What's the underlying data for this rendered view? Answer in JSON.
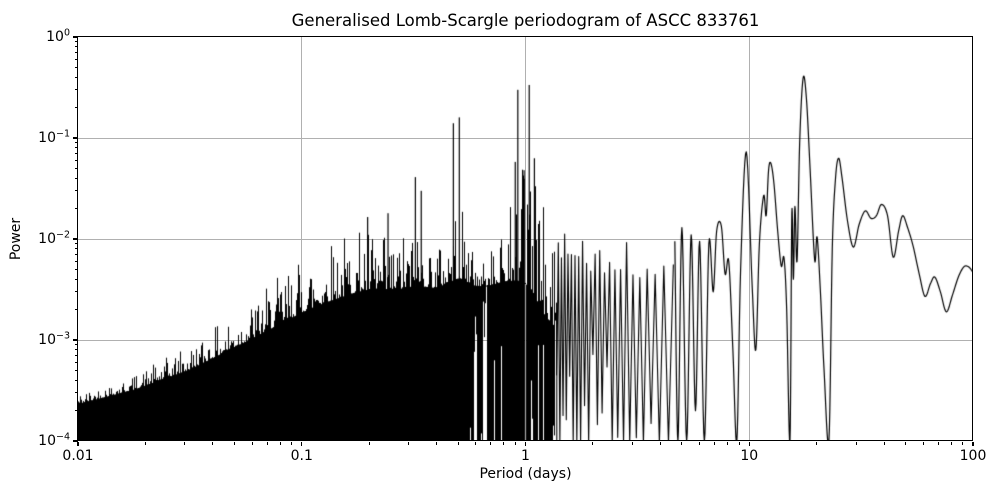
{
  "title": "Generalised Lomb-Scargle periodogram of ASCC 833761",
  "axes": {
    "xlabel": "Period (days)",
    "ylabel": "Power",
    "x_ticks": [
      {
        "value": 0.01,
        "label": "0.01"
      },
      {
        "value": 0.1,
        "label": "0.1"
      },
      {
        "value": 1,
        "label": "1"
      },
      {
        "value": 10,
        "label": "10"
      },
      {
        "value": 100,
        "label": "100"
      }
    ],
    "y_ticks": [
      {
        "value": 1,
        "base": "10",
        "exp": "0"
      },
      {
        "value": 0.1,
        "base": "10",
        "exp": "−1"
      },
      {
        "value": 0.01,
        "base": "10",
        "exp": "−2"
      },
      {
        "value": 0.001,
        "base": "10",
        "exp": "−3"
      },
      {
        "value": 0.0001,
        "base": "10",
        "exp": "−4"
      }
    ]
  },
  "chart_data": {
    "type": "line",
    "title": "Generalised Lomb-Scargle periodogram of ASCC 833761",
    "xlabel": "Period (days)",
    "ylabel": "Power",
    "x_scale": "log",
    "y_scale": "log",
    "x_range": [
      0.01,
      100
    ],
    "y_range": [
      0.0001,
      1
    ],
    "grid": true,
    "line_color": "#000000",
    "grid_color": "#b0b0b0",
    "x_gridlines": [
      0.1,
      1,
      10
    ],
    "y_gridlines": [
      0.1,
      0.01,
      0.001
    ],
    "peaks": [
      {
        "period": 0.197,
        "power": 0.0165
      },
      {
        "period": 0.243,
        "power": 0.018
      },
      {
        "period": 0.322,
        "power": 0.041
      },
      {
        "period": 0.342,
        "power": 0.03
      },
      {
        "period": 0.476,
        "power": 0.14
      },
      {
        "period": 0.506,
        "power": 0.16
      },
      {
        "period": 0.9,
        "power": 0.058
      },
      {
        "period": 0.924,
        "power": 0.3
      },
      {
        "period": 0.986,
        "power": 0.048
      },
      {
        "period": 1.039,
        "power": 0.335
      },
      {
        "period": 1.096,
        "power": 0.063
      }
    ],
    "series_tail": [
      [
        4.65,
        0.0095
      ],
      [
        4.8,
        0.0001
      ],
      [
        5.0,
        0.013
      ],
      [
        5.25,
        0.0001
      ],
      [
        5.5,
        0.011
      ],
      [
        5.75,
        0.0002
      ],
      [
        6.0,
        0.0095
      ],
      [
        6.3,
        0.0001
      ],
      [
        6.6,
        0.009
      ],
      [
        6.9,
        0.003
      ],
      [
        7.15,
        0.012
      ],
      [
        7.5,
        0.0135
      ],
      [
        7.8,
        0.0045
      ],
      [
        8.1,
        0.006
      ],
      [
        8.45,
        0.0008
      ],
      [
        8.8,
        0.0001
      ],
      [
        9.15,
        0.005
      ],
      [
        9.7,
        0.073
      ],
      [
        10.3,
        0.0035
      ],
      [
        10.7,
        0.0008
      ],
      [
        11.1,
        0.009
      ],
      [
        11.6,
        0.027
      ],
      [
        11.9,
        0.017
      ],
      [
        12.2,
        0.048
      ],
      [
        12.5,
        0.056
      ],
      [
        12.9,
        0.035
      ],
      [
        13.4,
        0.012
      ],
      [
        13.9,
        0.0054
      ],
      [
        14.3,
        0.0065
      ],
      [
        14.7,
        0.002
      ],
      [
        15.2,
        0.0001
      ],
      [
        15.5,
        0.018
      ],
      [
        15.75,
        0.004
      ],
      [
        16.0,
        0.021
      ],
      [
        16.35,
        0.006
      ],
      [
        16.8,
        0.09
      ],
      [
        17.4,
        0.39
      ],
      [
        18.0,
        0.25
      ],
      [
        18.7,
        0.05
      ],
      [
        19.6,
        0.0062
      ],
      [
        20.1,
        0.0105
      ],
      [
        20.8,
        0.003
      ],
      [
        21.6,
        0.0005
      ],
      [
        22.7,
        0.0001
      ],
      [
        23.5,
        0.008
      ],
      [
        24.3,
        0.04
      ],
      [
        25.1,
        0.063
      ],
      [
        26.0,
        0.04
      ],
      [
        27.5,
        0.015
      ],
      [
        29.2,
        0.0083
      ],
      [
        31.0,
        0.014
      ],
      [
        33.0,
        0.019
      ],
      [
        35.0,
        0.016
      ],
      [
        37.0,
        0.017
      ],
      [
        39.0,
        0.022
      ],
      [
        41.5,
        0.017
      ],
      [
        44.0,
        0.0066
      ],
      [
        46.5,
        0.012
      ],
      [
        48.5,
        0.017
      ],
      [
        51.0,
        0.013
      ],
      [
        54.0,
        0.0085
      ],
      [
        57.5,
        0.0045
      ],
      [
        61.0,
        0.0027
      ],
      [
        64.5,
        0.0036
      ],
      [
        67.5,
        0.0042
      ],
      [
        71.5,
        0.003
      ],
      [
        76.0,
        0.0019
      ],
      [
        81.0,
        0.0028
      ],
      [
        86.0,
        0.0042
      ],
      [
        91.0,
        0.0053
      ],
      [
        95.5,
        0.0053
      ],
      [
        100.0,
        0.0047
      ]
    ],
    "synth": {
      "seed": 42,
      "dense_end": 1.38,
      "tail_start": 4.65,
      "peak_spacing_freq": 0.0225,
      "top_envelope": [
        [
          0.01,
          0.0003
        ],
        [
          0.0178,
          0.00045
        ],
        [
          0.0316,
          0.0009
        ],
        [
          0.0562,
          0.0022
        ],
        [
          0.1,
          0.007
        ],
        [
          0.13,
          0.0105
        ],
        [
          0.2,
          0.0135
        ],
        [
          0.25,
          0.01
        ],
        [
          0.33,
          0.014
        ],
        [
          0.4,
          0.009
        ],
        [
          0.5,
          0.025
        ],
        [
          0.6,
          0.009
        ],
        [
          0.7,
          0.013
        ],
        [
          0.82,
          0.03
        ],
        [
          0.92,
          0.055
        ],
        [
          1.05,
          0.055
        ],
        [
          1.14,
          0.035
        ],
        [
          1.25,
          0.015
        ],
        [
          1.41,
          0.012
        ],
        [
          2.0,
          0.01
        ],
        [
          2.8,
          0.0105
        ],
        [
          3.5,
          0.0085
        ],
        [
          4.2,
          0.012
        ],
        [
          4.65,
          0.012
        ]
      ],
      "solid_top": [
        [
          0.01,
          0.00022
        ],
        [
          0.0178,
          0.0003
        ],
        [
          0.0316,
          0.00045
        ],
        [
          0.0562,
          0.0008
        ],
        [
          0.1,
          0.0014
        ],
        [
          0.178,
          0.0022
        ],
        [
          0.316,
          0.0025
        ],
        [
          0.56,
          0.0028
        ],
        [
          0.8,
          0.0025
        ],
        [
          1.0,
          0.002
        ],
        [
          1.2,
          0.0011
        ],
        [
          1.38,
          0.0008
        ]
      ]
    }
  }
}
